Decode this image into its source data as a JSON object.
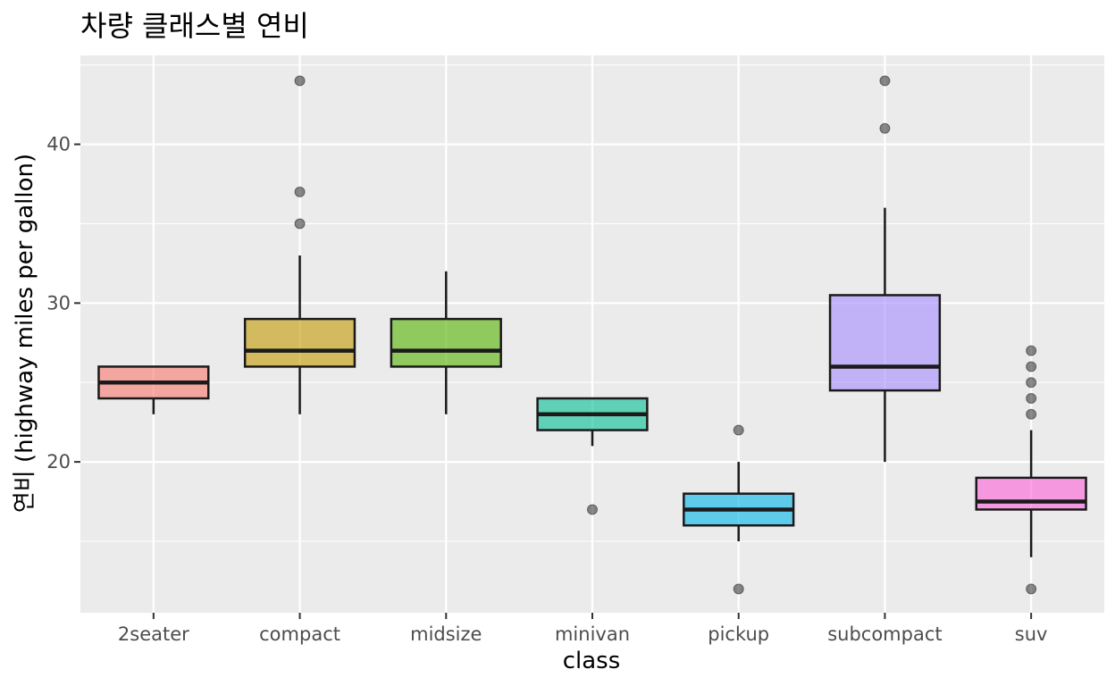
{
  "chart_data": {
    "type": "box",
    "title": "차량 클래스별 연비",
    "xlabel": "class",
    "ylabel": "연비 (highway miles per gallon)",
    "ylim": [
      10.5,
      45.6
    ],
    "yticks": [
      20,
      30,
      40
    ],
    "grid": true,
    "categories": [
      "2seater",
      "compact",
      "midsize",
      "minivan",
      "pickup",
      "subcompact",
      "suv"
    ],
    "boxes": [
      {
        "category": "2seater",
        "min": 23,
        "q1": 24,
        "median": 25,
        "q3": 26,
        "max": 26,
        "outliers": [],
        "color": "#F8766D"
      },
      {
        "category": "compact",
        "min": 23,
        "q1": 26,
        "median": 27,
        "q3": 29,
        "max": 33,
        "outliers": [
          35,
          37,
          44
        ],
        "color": "#C49A00"
      },
      {
        "category": "midsize",
        "min": 23,
        "q1": 26,
        "median": 27,
        "q3": 29,
        "max": 32,
        "outliers": [],
        "color": "#53B400"
      },
      {
        "category": "minivan",
        "min": 21,
        "q1": 22,
        "median": 23,
        "q3": 24,
        "max": 24,
        "outliers": [
          17
        ],
        "color": "#00C094"
      },
      {
        "category": "pickup",
        "min": 15,
        "q1": 16,
        "median": 17,
        "q3": 18,
        "max": 20,
        "outliers": [
          12,
          22
        ],
        "color": "#00B6EB"
      },
      {
        "category": "subcompact",
        "min": 20,
        "q1": 24.5,
        "median": 26,
        "q3": 30.5,
        "max": 36,
        "outliers": [
          41,
          44
        ],
        "color": "#A58AFF"
      },
      {
        "category": "suv",
        "min": 14,
        "q1": 17,
        "median": 17.5,
        "q3": 19,
        "max": 22,
        "outliers": [
          12,
          23,
          24,
          25,
          26,
          27
        ],
        "color": "#FB61D7"
      }
    ]
  }
}
